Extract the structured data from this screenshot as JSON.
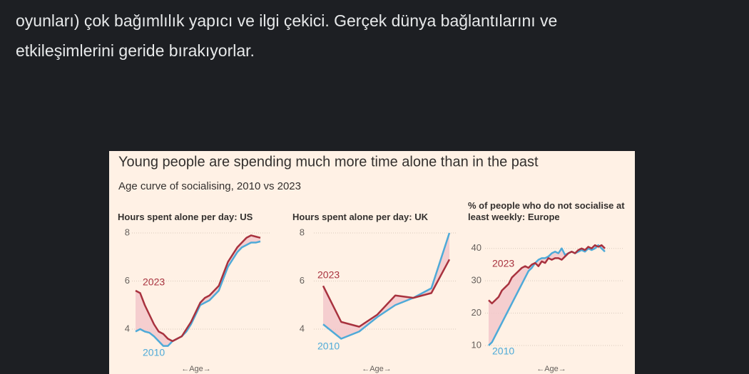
{
  "post": {
    "lines": [
      "oyunları) çok bağımlılık yapıcı ve ilgi çekici. Gerçek dünya bağlantılarını ve",
      "etkileşimlerini geride bırakıyorlar."
    ]
  },
  "figure": {
    "title": "Young people are spending much more time alone than in the past",
    "subtitle": "Age curve of socialising, 2010 vs 2023"
  },
  "chart_data": [
    {
      "type": "line",
      "title": "Hours spent alone per day: US",
      "x_label": "←Age→",
      "ylim": [
        2.5,
        8.2
      ],
      "yticks": [
        4,
        6,
        8
      ],
      "grid": true,
      "series": [
        {
          "name": "2010",
          "color": "#4eaad8",
          "values": [
            3.9,
            4.0,
            3.9,
            3.85,
            3.7,
            3.5,
            3.3,
            3.3,
            3.5,
            3.6,
            3.7,
            3.9,
            4.2,
            4.6,
            5.0,
            5.1,
            5.2,
            5.4,
            5.6,
            6.1,
            6.6,
            6.9,
            7.2,
            7.4,
            7.5,
            7.6,
            7.6,
            7.65
          ]
        },
        {
          "name": "2023",
          "color": "#a8323e",
          "values": [
            5.6,
            5.5,
            5.0,
            4.6,
            4.2,
            3.9,
            3.8,
            3.6,
            3.5,
            3.6,
            3.7,
            4.0,
            4.3,
            4.7,
            5.1,
            5.3,
            5.4,
            5.6,
            5.8,
            6.3,
            6.8,
            7.1,
            7.4,
            7.6,
            7.8,
            7.9,
            7.85,
            7.8
          ]
        }
      ]
    },
    {
      "type": "line",
      "title": "Hours spent alone per day: UK",
      "x_label": "←Age→",
      "ylim": [
        2.5,
        8.2
      ],
      "yticks": [
        4,
        6,
        8
      ],
      "grid": true,
      "series": [
        {
          "name": "2010",
          "color": "#4eaad8",
          "values": [
            4.2,
            3.6,
            3.9,
            4.5,
            5.0,
            5.3,
            5.7,
            8.0
          ]
        },
        {
          "name": "2023",
          "color": "#a8323e",
          "values": [
            5.8,
            4.3,
            4.1,
            4.6,
            5.4,
            5.3,
            5.5,
            6.9
          ]
        }
      ]
    },
    {
      "type": "line",
      "title": "% of people who do not socialise at least weekly: Europe",
      "x_label": "←Age→",
      "ylim": [
        4,
        45
      ],
      "yticks": [
        10,
        20,
        30,
        40
      ],
      "grid": true,
      "series": [
        {
          "name": "2010",
          "color": "#4eaad8",
          "values": [
            10,
            11,
            13,
            15,
            17,
            19,
            21,
            23,
            25,
            27,
            29,
            31,
            33,
            34,
            35.5,
            36.5,
            37,
            37,
            37.5,
            38.5,
            39,
            38.5,
            40,
            38,
            38.5,
            39,
            38.5,
            39,
            39.5,
            39,
            40,
            39.5,
            40,
            41,
            40,
            39
          ]
        },
        {
          "name": "2023",
          "color": "#a8323e",
          "values": [
            24,
            23,
            24,
            25,
            27,
            28,
            29,
            31,
            32,
            33,
            34,
            34.5,
            34,
            35,
            35.5,
            34.5,
            36,
            35.5,
            37,
            36.5,
            37,
            37,
            36.5,
            37.5,
            38.5,
            39,
            38.5,
            39.5,
            40,
            39.5,
            40.5,
            40,
            41,
            40.5,
            41,
            40
          ]
        }
      ]
    }
  ]
}
